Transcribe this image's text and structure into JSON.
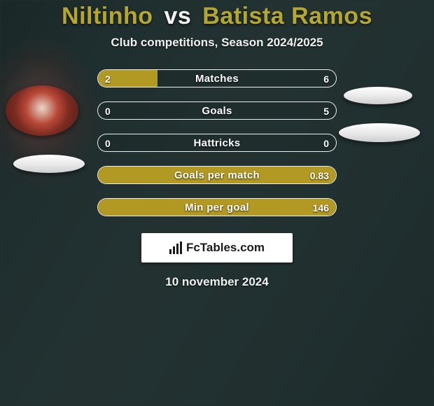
{
  "title": {
    "player1": "Niltinho",
    "vs": "vs",
    "player2": "Batista Ramos",
    "player1_color": "#b4a632",
    "vs_color": "#f2f2ee",
    "player2_color": "#b4a632"
  },
  "subtitle": "Club competitions, Season 2024/2025",
  "date": "10 november 2024",
  "bar_fill_color": "#b29924",
  "rows": [
    {
      "label": "Matches",
      "left": "2",
      "right": "6",
      "fill_pct": 25,
      "full": false
    },
    {
      "label": "Goals",
      "left": "0",
      "right": "5",
      "fill_pct": 0,
      "full": false
    },
    {
      "label": "Hattricks",
      "left": "0",
      "right": "0",
      "fill_pct": 0,
      "full": false
    },
    {
      "label": "Goals per match",
      "left": "",
      "right": "0.83",
      "fill_pct": 100,
      "full": true
    },
    {
      "label": "Min per goal",
      "left": "",
      "right": "146",
      "fill_pct": 100,
      "full": true
    }
  ],
  "logo": {
    "prefix_icon": "bar-chart",
    "text": "FcTables.com"
  }
}
